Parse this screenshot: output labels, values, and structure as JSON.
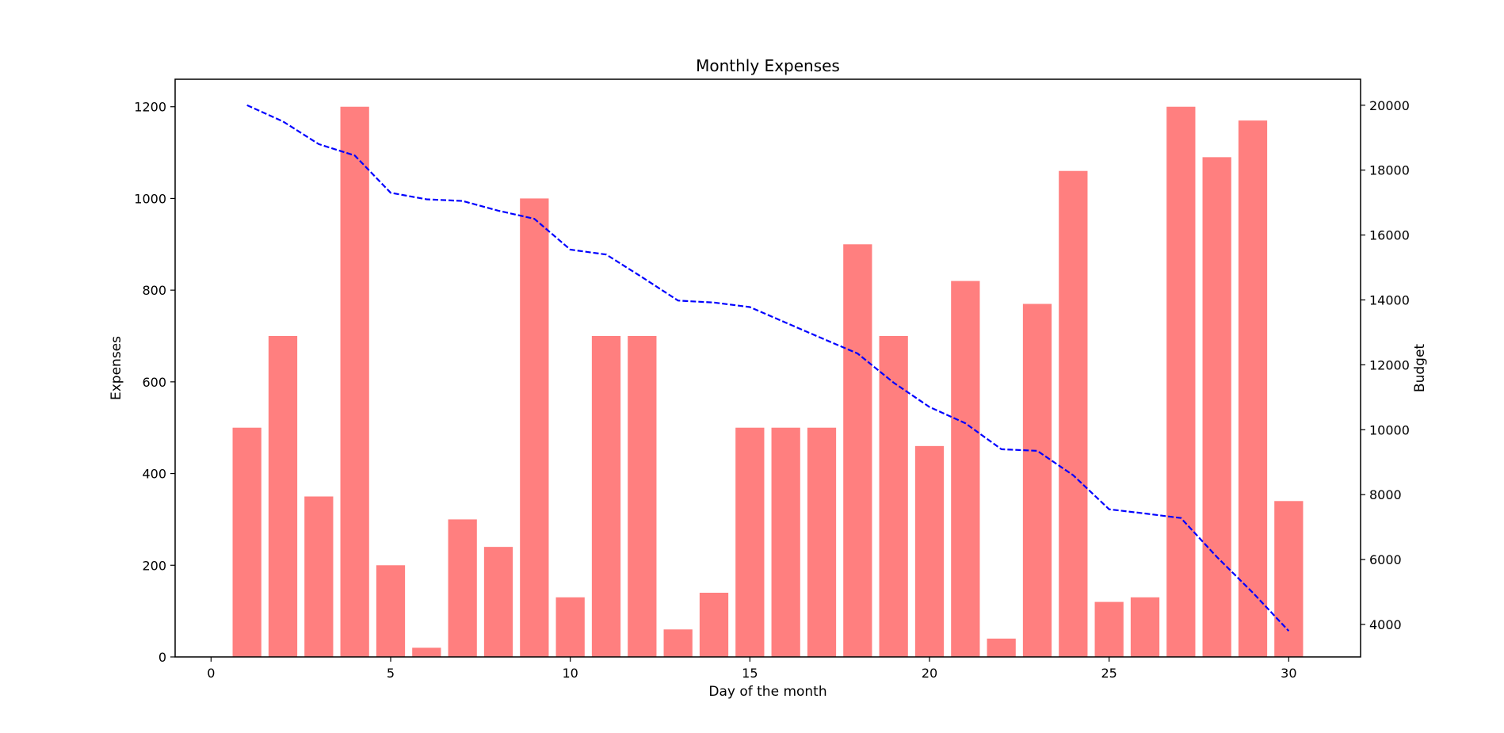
{
  "chart_data": {
    "type": "bar",
    "title": "Monthly Expenses",
    "xlabel": "Day of the month",
    "ylabel": "Expenses",
    "y2label": "Budget",
    "xlim": [
      -1,
      32
    ],
    "ylim": [
      0,
      1260
    ],
    "y2lim": [
      3000,
      20800
    ],
    "x_ticks": [
      0,
      5,
      10,
      15,
      20,
      25,
      30
    ],
    "y_ticks": [
      0,
      200,
      400,
      600,
      800,
      1000,
      1200
    ],
    "y2_ticks": [
      4000,
      6000,
      8000,
      10000,
      12000,
      14000,
      16000,
      18000,
      20000
    ],
    "grid": false,
    "x": [
      1,
      2,
      3,
      4,
      5,
      6,
      7,
      8,
      9,
      10,
      11,
      12,
      13,
      14,
      15,
      16,
      17,
      18,
      19,
      20,
      21,
      22,
      23,
      24,
      25,
      26,
      27,
      28,
      29,
      30
    ],
    "series": [
      {
        "type": "bar",
        "axis": "left",
        "color": "#ff7f7f",
        "values": [
          500,
          700,
          350,
          1200,
          200,
          20,
          300,
          240,
          1000,
          130,
          700,
          700,
          60,
          140,
          500,
          500,
          500,
          900,
          700,
          460,
          820,
          40,
          770,
          1060,
          120,
          130,
          1200,
          1090,
          1170,
          340
        ]
      },
      {
        "type": "line",
        "axis": "right",
        "color": "#0000ff",
        "linestyle": "dashed",
        "values": [
          20000,
          19500,
          18800,
          18450,
          17300,
          17100,
          17050,
          16750,
          16500,
          15550,
          15400,
          14700,
          13980,
          13920,
          13780,
          13300,
          12820,
          12350,
          11450,
          10700,
          10200,
          9400,
          9350,
          8600,
          7550,
          7420,
          7280,
          6080,
          4980,
          3800
        ]
      }
    ]
  }
}
